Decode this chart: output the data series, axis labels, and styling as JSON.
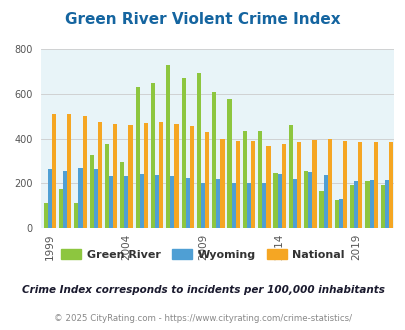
{
  "title": "Green River Violent Crime Index",
  "years": [
    1999,
    2000,
    2001,
    2002,
    2003,
    2004,
    2005,
    2006,
    2007,
    2008,
    2009,
    2010,
    2011,
    2012,
    2013,
    2014,
    2015,
    2016,
    2017,
    2018,
    2019,
    2020,
    2021
  ],
  "green_river": [
    110,
    175,
    110,
    325,
    375,
    295,
    630,
    650,
    730,
    670,
    695,
    610,
    580,
    435,
    435,
    245,
    460,
    255,
    165,
    125,
    190,
    210,
    190
  ],
  "wyoming": [
    265,
    255,
    270,
    262,
    232,
    230,
    240,
    235,
    232,
    225,
    200,
    220,
    202,
    200,
    200,
    243,
    220,
    250,
    235,
    130,
    210,
    215,
    215
  ],
  "national": [
    512,
    510,
    502,
    475,
    465,
    460,
    470,
    475,
    465,
    455,
    430,
    400,
    390,
    390,
    365,
    375,
    385,
    395,
    400,
    388,
    385,
    385,
    385
  ],
  "bar_colors": {
    "green_river": "#8dc63f",
    "wyoming": "#4f9fd4",
    "national": "#f5a623"
  },
  "legend_labels": [
    "Green River",
    "Wyoming",
    "National"
  ],
  "ylim": [
    0,
    800
  ],
  "yticks": [
    0,
    200,
    400,
    600,
    800
  ],
  "xtick_labels": [
    "1999",
    "2004",
    "2009",
    "2014",
    "2019"
  ],
  "xtick_positions": [
    0,
    5,
    10,
    15,
    20
  ],
  "background_color": "#e8f4f8",
  "subtitle": "Crime Index corresponds to incidents per 100,000 inhabitants",
  "footer": "© 2025 CityRating.com - https://www.cityrating.com/crime-statistics/",
  "title_color": "#1565a0",
  "subtitle_color": "#1a1a2e",
  "footer_color": "#888888",
  "grid_color": "#cccccc",
  "fig_width": 4.06,
  "fig_height": 3.3,
  "dpi": 100
}
